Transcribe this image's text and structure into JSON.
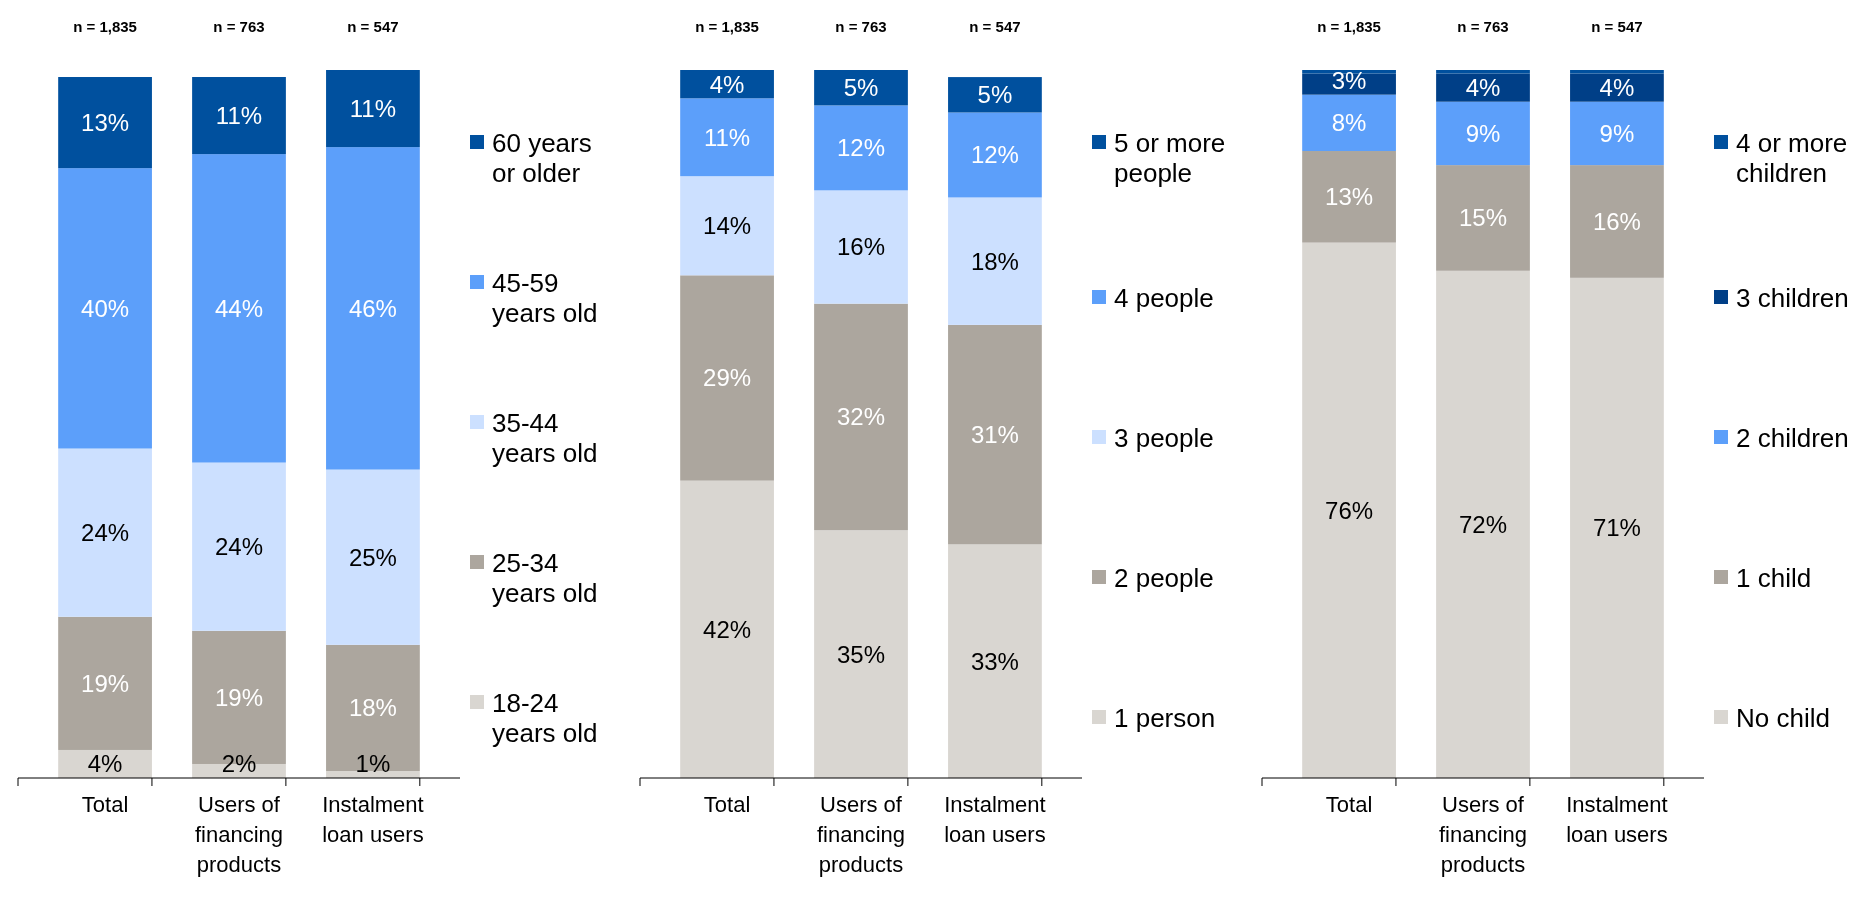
{
  "chart_data": [
    {
      "type": "bar",
      "stacked": true,
      "legend": "right",
      "categories": [
        "Total",
        "Users of financing products",
        "Instalment loan users"
      ],
      "annotations": [
        "n = 1,835",
        "n = 763",
        "n = 547"
      ],
      "series": [
        {
          "name": "18-24 years old",
          "color": "#d9d6d1",
          "values": [
            4,
            2,
            1
          ],
          "value_labels": [
            "4%",
            "2%",
            "1%"
          ]
        },
        {
          "name": "25-34 years old",
          "color": "#aca69e",
          "values": [
            19,
            19,
            18
          ],
          "value_labels": [
            "19%",
            "19%",
            "18%"
          ]
        },
        {
          "name": "35-44 years old",
          "color": "#cce0ff",
          "values": [
            24,
            24,
            25
          ],
          "value_labels": [
            "24%",
            "24%",
            "25%"
          ]
        },
        {
          "name": "45-59 years old",
          "color": "#5c9ffa",
          "values": [
            40,
            44,
            46
          ],
          "value_labels": [
            "40%",
            "44%",
            "46%"
          ]
        },
        {
          "name": "60 years or older",
          "color": "#00509e",
          "values": [
            13,
            11,
            11
          ],
          "value_labels": [
            "13%",
            "11%",
            "11%"
          ]
        }
      ]
    },
    {
      "type": "bar",
      "stacked": true,
      "legend": "right",
      "categories": [
        "Total",
        "Users of financing products",
        "Instalment loan users"
      ],
      "annotations": [
        "n = 1,835",
        "n = 763",
        "n = 547"
      ],
      "series": [
        {
          "name": "1 person",
          "color": "#d9d6d1",
          "values": [
            42,
            35,
            33
          ],
          "value_labels": [
            "42%",
            "35%",
            "33%"
          ]
        },
        {
          "name": "2 people",
          "color": "#aca69e",
          "values": [
            29,
            32,
            31
          ],
          "value_labels": [
            "29%",
            "32%",
            "31%"
          ]
        },
        {
          "name": "3 people",
          "color": "#cce0ff",
          "values": [
            14,
            16,
            18
          ],
          "value_labels": [
            "14%",
            "16%",
            "18%"
          ]
        },
        {
          "name": "4 people",
          "color": "#5c9ffa",
          "values": [
            11,
            12,
            12
          ],
          "value_labels": [
            "11%",
            "12%",
            "12%"
          ]
        },
        {
          "name": "5 or more people",
          "color": "#00509e",
          "values": [
            4,
            5,
            5
          ],
          "value_labels": [
            "4%",
            "5%",
            "5%"
          ]
        }
      ]
    },
    {
      "type": "bar",
      "stacked": true,
      "legend": "right",
      "categories": [
        "Total",
        "Users of financing products",
        "Instalment loan users"
      ],
      "annotations": [
        "n = 1,835",
        "n = 763",
        "n = 547"
      ],
      "series": [
        {
          "name": "No child",
          "color": "#d9d6d1",
          "values": [
            76,
            72,
            71
          ],
          "value_labels": [
            "76%",
            "72%",
            "71%"
          ]
        },
        {
          "name": "1 child",
          "color": "#aca69e",
          "values": [
            13,
            15,
            16
          ],
          "value_labels": [
            "13%",
            "15%",
            "16%"
          ]
        },
        {
          "name": "2 children",
          "color": "#5c9ffa",
          "values": [
            8,
            9,
            9
          ],
          "value_labels": [
            "8%",
            "9%",
            "9%"
          ]
        },
        {
          "name": "3 children",
          "color": "#003f87",
          "values": [
            3,
            4,
            4
          ],
          "value_labels": [
            "3%",
            "4%",
            "4%"
          ]
        },
        {
          "name": "4 or more children",
          "color": "#00509e",
          "values": [
            0.5,
            0.5,
            0.5
          ],
          "value_labels": [
            null,
            null,
            null
          ]
        }
      ]
    }
  ]
}
